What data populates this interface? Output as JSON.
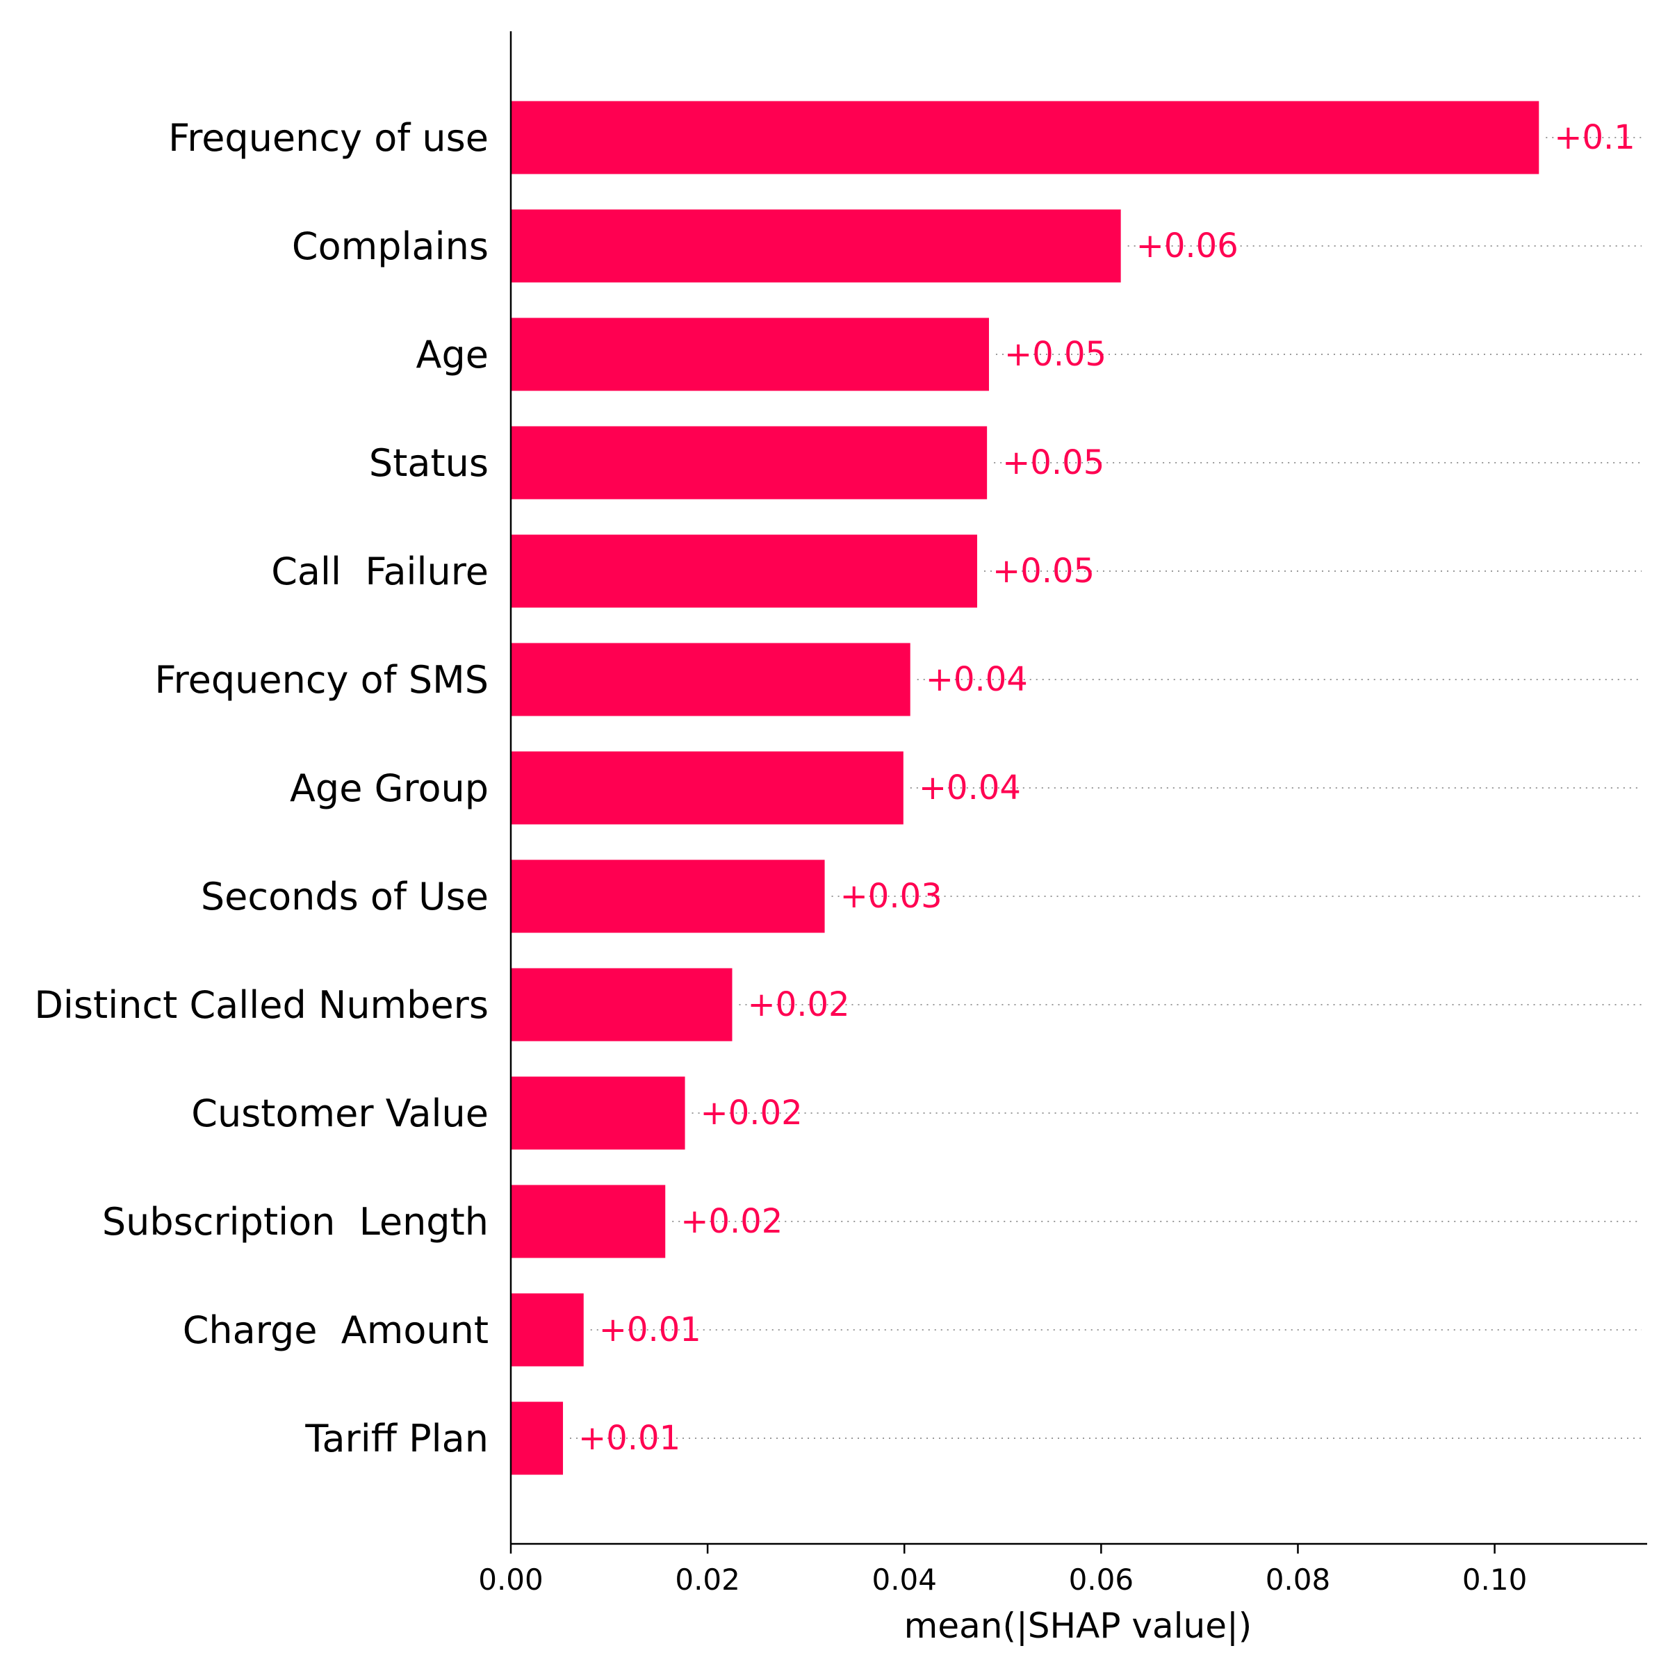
{
  "chart_data": {
    "type": "bar",
    "orientation": "horizontal",
    "categories": [
      "Frequency of use",
      "Complains",
      "Age",
      "Status",
      "Call  Failure",
      "Frequency of SMS",
      "Age Group",
      "Seconds of Use",
      "Distinct Called Numbers",
      "Customer Value",
      "Subscription  Length",
      "Charge  Amount",
      "Tariff Plan"
    ],
    "values": [
      0.1045,
      0.062,
      0.0486,
      0.0484,
      0.0474,
      0.0406,
      0.0399,
      0.0319,
      0.0225,
      0.0177,
      0.0157,
      0.0074,
      0.0053
    ],
    "value_labels": [
      "+0.1",
      "+0.06",
      "+0.05",
      "+0.05",
      "+0.05",
      "+0.04",
      "+0.04",
      "+0.03",
      "+0.02",
      "+0.02",
      "+0.02",
      "+0.01",
      "+0.01"
    ],
    "xlabel": "mean(|SHAP value|)",
    "xlim": [
      0,
      0.1155
    ],
    "xticks": [
      0.0,
      0.02,
      0.04,
      0.06,
      0.08,
      0.1
    ],
    "xtick_labels": [
      "0.00",
      "0.02",
      "0.04",
      "0.06",
      "0.08",
      "0.10"
    ],
    "grid": false,
    "bar_color": "#ff0051",
    "label_color": "#ff0051"
  }
}
